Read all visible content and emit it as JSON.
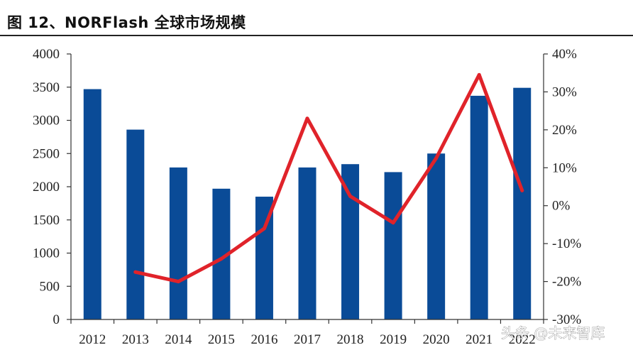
{
  "title": "图 12、NORFlash 全球市场规模",
  "watermark": "头条 @未来智库",
  "chart_data": {
    "type": "bar",
    "categories": [
      "2012",
      "2013",
      "2014",
      "2015",
      "2016",
      "2017",
      "2018",
      "2019",
      "2020",
      "2021",
      "2022"
    ],
    "series": [
      {
        "type": "bar",
        "axis": "left",
        "values": [
          3470,
          2860,
          2290,
          1970,
          1850,
          2290,
          2340,
          2220,
          2500,
          3370,
          3490
        ]
      },
      {
        "type": "line",
        "axis": "right",
        "unit": "%",
        "values": [
          null,
          -17.5,
          -20,
          -14,
          -6,
          23,
          2.5,
          -4.5,
          12.5,
          34.5,
          4
        ]
      }
    ],
    "y_left": {
      "min": 0,
      "max": 4000,
      "ticks": [
        "0",
        "500",
        "1000",
        "1500",
        "2000",
        "2500",
        "3000",
        "3500",
        "4000"
      ]
    },
    "y_right": {
      "min": -30,
      "max": 40,
      "ticks": [
        "-30%",
        "-20%",
        "-10%",
        "0%",
        "10%",
        "20%",
        "30%",
        "40%"
      ]
    },
    "colors": {
      "bar": "#0a4b97",
      "line": "#e0232a",
      "axis": "#333333"
    },
    "grid": false,
    "legend": "none"
  }
}
